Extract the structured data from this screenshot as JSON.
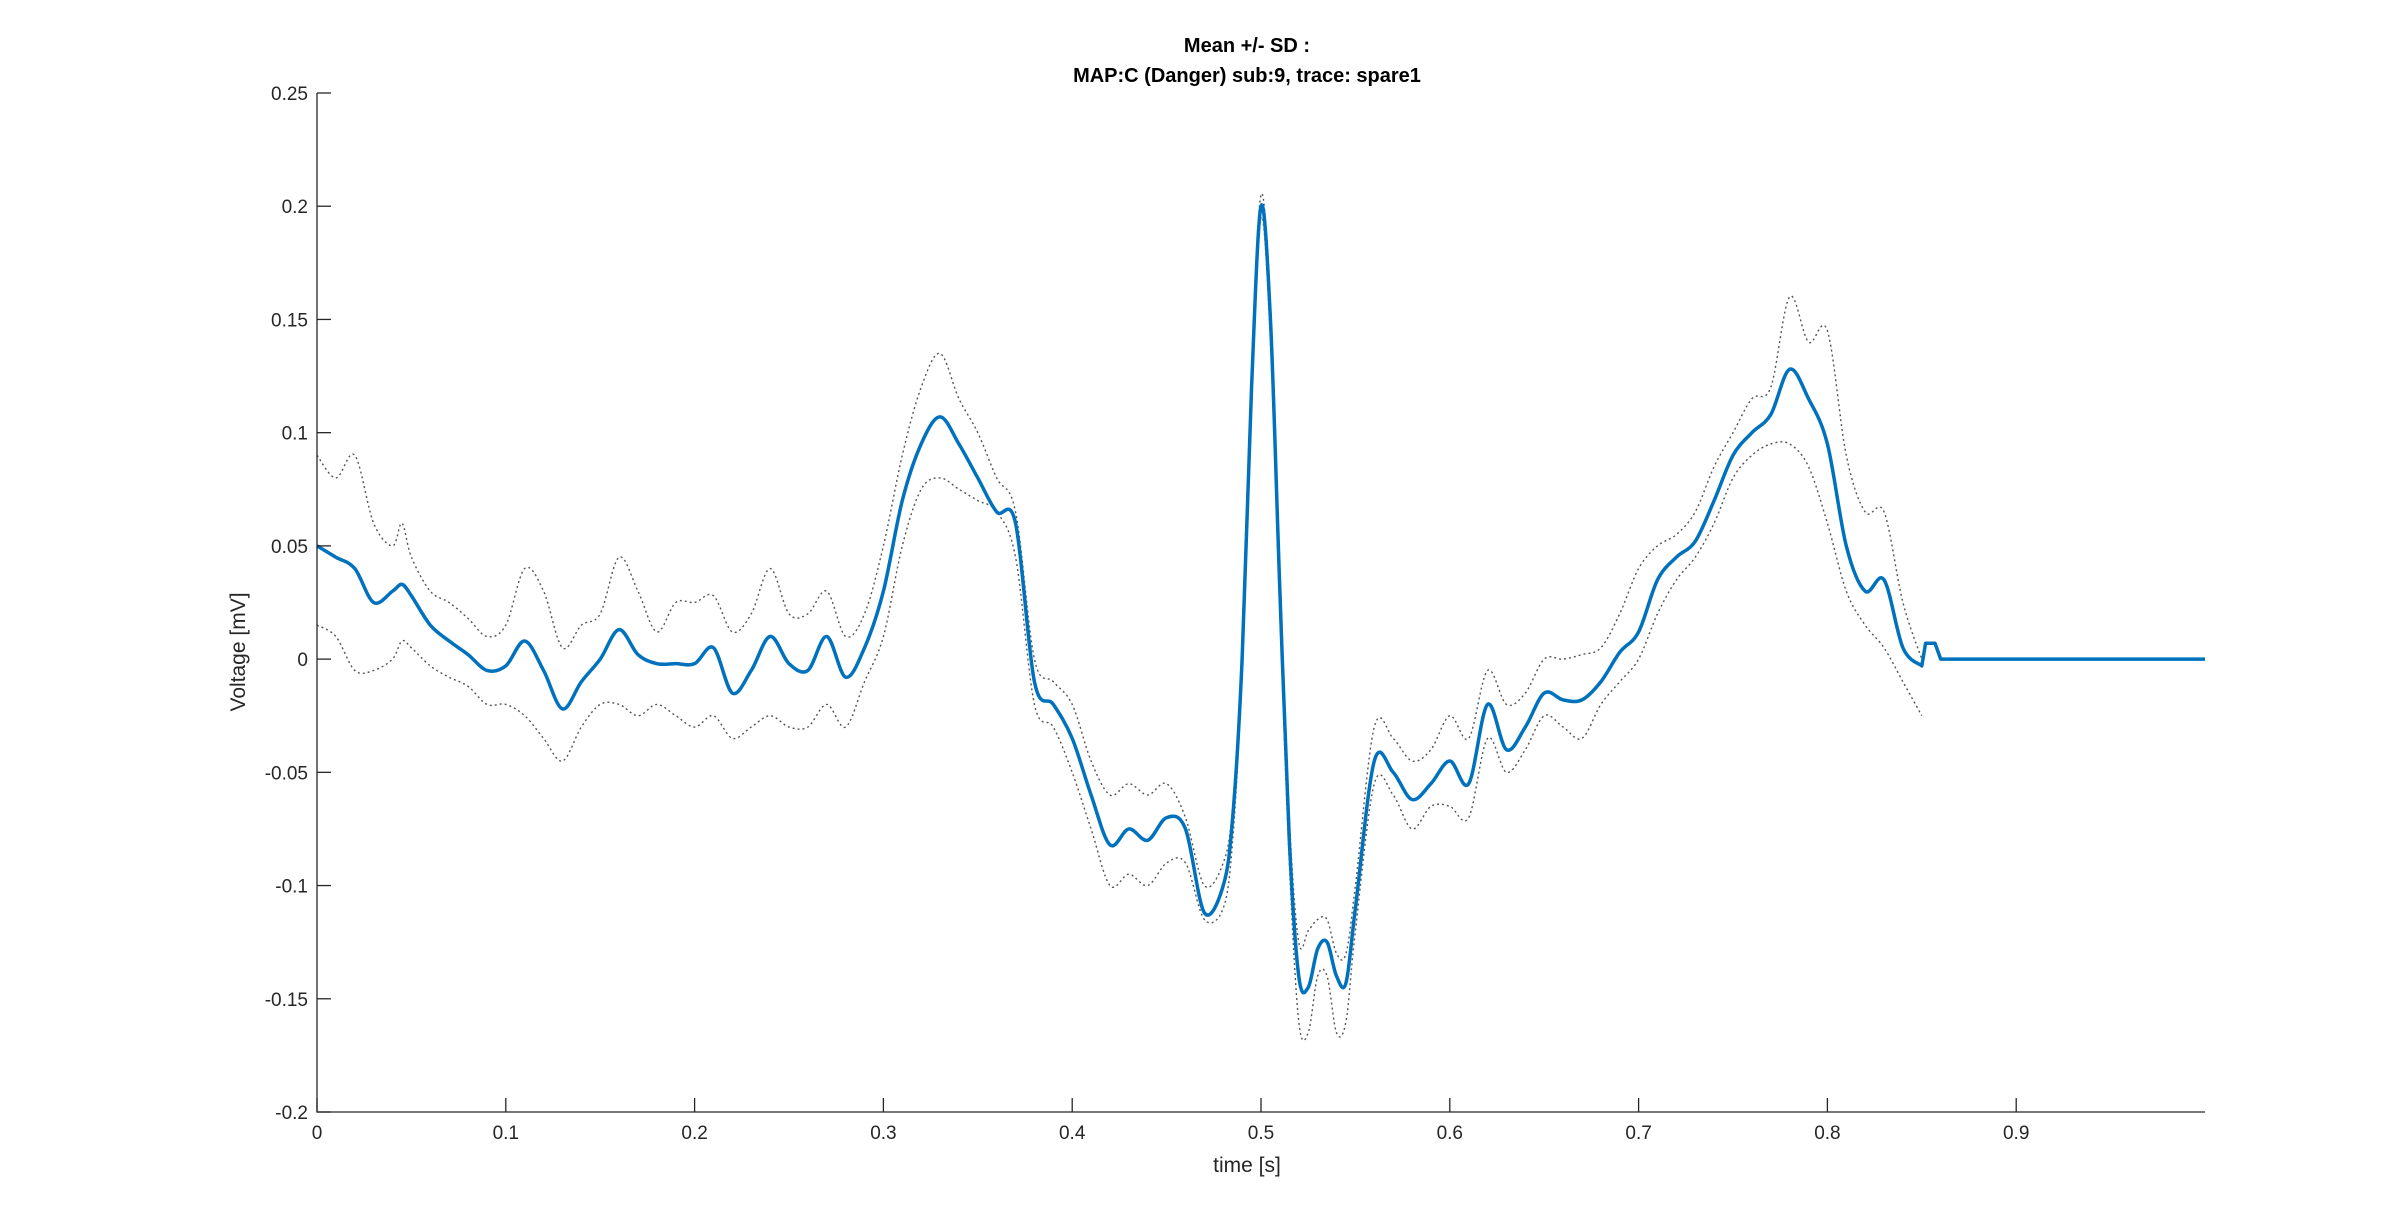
{
  "chart_data": {
    "type": "line",
    "title_lines": [
      "Mean +/- SD :",
      "MAP:C (Danger) sub:9, trace: spare1"
    ],
    "xlabel": "time [s]",
    "ylabel": "Voltage [mV]",
    "xlim": [
      0,
      1
    ],
    "ylim": [
      -0.2,
      0.25
    ],
    "x_ticks": [
      0,
      0.1,
      0.2,
      0.3,
      0.4,
      0.5,
      0.6,
      0.7,
      0.8,
      0.9
    ],
    "x_tick_labels": [
      "0",
      "0.1",
      "0.2",
      "0.3",
      "0.4",
      "0.5",
      "0.6",
      "0.7",
      "0.8",
      "0.9"
    ],
    "y_ticks": [
      -0.2,
      -0.15,
      -0.1,
      -0.05,
      0,
      0.05,
      0.1,
      0.15,
      0.2,
      0.25
    ],
    "y_tick_labels": [
      "-0.2",
      "-0.15",
      "-0.1",
      "-0.05",
      "0",
      "0.05",
      "0.1",
      "0.15",
      "0.2",
      "0.25"
    ],
    "grid": false,
    "colors": {
      "mean": "#0072BD",
      "sd": "#555555",
      "axis": "#262626"
    },
    "series": [
      {
        "x": [
          0,
          0.01,
          0.02,
          0.03,
          0.04,
          0.045,
          0.05,
          0.06,
          0.07,
          0.08,
          0.09,
          0.1,
          0.11,
          0.12,
          0.13,
          0.14,
          0.15,
          0.16,
          0.17,
          0.18,
          0.19,
          0.2,
          0.21,
          0.22,
          0.23,
          0.24,
          0.25,
          0.26,
          0.27,
          0.28,
          0.29,
          0.3,
          0.31,
          0.32,
          0.33,
          0.34,
          0.35,
          0.36,
          0.37,
          0.38,
          0.39,
          0.4,
          0.41,
          0.42,
          0.43,
          0.44,
          0.45,
          0.46,
          0.47,
          0.48,
          0.485,
          0.49,
          0.495,
          0.5,
          0.505,
          0.51,
          0.515,
          0.52,
          0.525,
          0.53,
          0.535,
          0.54,
          0.545,
          0.55,
          0.56,
          0.57,
          0.58,
          0.59,
          0.6,
          0.61,
          0.62,
          0.63,
          0.64,
          0.65,
          0.66,
          0.67,
          0.68,
          0.69,
          0.7,
          0.71,
          0.72,
          0.73,
          0.74,
          0.75,
          0.76,
          0.77,
          0.78,
          0.79,
          0.8,
          0.81,
          0.82,
          0.83,
          0.84,
          0.85,
          0.852,
          0.857,
          0.86,
          1.0
        ],
        "y": [
          0.05,
          0.045,
          0.04,
          0.025,
          0.03,
          0.033,
          0.028,
          0.015,
          0.008,
          0.002,
          -0.005,
          -0.003,
          0.008,
          -0.005,
          -0.022,
          -0.01,
          0.0,
          0.013,
          0.002,
          -0.002,
          -0.002,
          -0.002,
          0.005,
          -0.015,
          -0.005,
          0.01,
          -0.002,
          -0.005,
          0.01,
          -0.008,
          0.005,
          0.03,
          0.07,
          0.095,
          0.107,
          0.095,
          0.08,
          0.065,
          0.06,
          -0.01,
          -0.02,
          -0.035,
          -0.06,
          -0.082,
          -0.075,
          -0.08,
          -0.07,
          -0.075,
          -0.112,
          -0.1,
          -0.07,
          0.0,
          0.12,
          0.2,
          0.15,
          0.03,
          -0.08,
          -0.14,
          -0.145,
          -0.128,
          -0.125,
          -0.14,
          -0.143,
          -0.11,
          -0.045,
          -0.05,
          -0.062,
          -0.055,
          -0.045,
          -0.055,
          -0.02,
          -0.04,
          -0.03,
          -0.015,
          -0.018,
          -0.018,
          -0.01,
          0.003,
          0.012,
          0.035,
          0.045,
          0.052,
          0.07,
          0.09,
          0.1,
          0.108,
          0.128,
          0.115,
          0.095,
          0.05,
          0.03,
          0.035,
          0.005,
          -0.003,
          0.007,
          0.007,
          0.0,
          0.0
        ]
      },
      {
        "x": [
          0,
          0.01,
          0.02,
          0.03,
          0.04,
          0.045,
          0.05,
          0.06,
          0.07,
          0.08,
          0.09,
          0.1,
          0.11,
          0.12,
          0.13,
          0.14,
          0.15,
          0.16,
          0.17,
          0.18,
          0.19,
          0.2,
          0.21,
          0.22,
          0.23,
          0.24,
          0.25,
          0.26,
          0.27,
          0.28,
          0.29,
          0.3,
          0.31,
          0.32,
          0.33,
          0.34,
          0.35,
          0.36,
          0.37,
          0.38,
          0.39,
          0.4,
          0.41,
          0.42,
          0.43,
          0.44,
          0.45,
          0.46,
          0.47,
          0.48,
          0.485,
          0.49,
          0.495,
          0.5,
          0.505,
          0.51,
          0.515,
          0.52,
          0.525,
          0.53,
          0.535,
          0.54,
          0.545,
          0.55,
          0.56,
          0.57,
          0.58,
          0.59,
          0.6,
          0.61,
          0.62,
          0.63,
          0.64,
          0.65,
          0.66,
          0.67,
          0.68,
          0.69,
          0.7,
          0.71,
          0.72,
          0.73,
          0.74,
          0.75,
          0.76,
          0.77,
          0.78,
          0.79,
          0.8,
          0.81,
          0.82,
          0.83,
          0.84,
          0.85
        ],
        "y": [
          0.09,
          0.08,
          0.09,
          0.06,
          0.05,
          0.06,
          0.045,
          0.03,
          0.025,
          0.018,
          0.01,
          0.015,
          0.04,
          0.03,
          0.005,
          0.015,
          0.02,
          0.045,
          0.03,
          0.012,
          0.025,
          0.025,
          0.028,
          0.012,
          0.02,
          0.04,
          0.02,
          0.02,
          0.03,
          0.01,
          0.02,
          0.05,
          0.09,
          0.12,
          0.135,
          0.115,
          0.1,
          0.08,
          0.065,
          0.0,
          -0.01,
          -0.02,
          -0.045,
          -0.06,
          -0.055,
          -0.06,
          -0.055,
          -0.07,
          -0.1,
          -0.09,
          -0.065,
          0.005,
          0.125,
          0.205,
          0.155,
          0.04,
          -0.07,
          -0.125,
          -0.12,
          -0.115,
          -0.115,
          -0.13,
          -0.13,
          -0.1,
          -0.03,
          -0.035,
          -0.045,
          -0.04,
          -0.025,
          -0.035,
          -0.005,
          -0.02,
          -0.015,
          0.0,
          0.0,
          0.002,
          0.005,
          0.02,
          0.04,
          0.05,
          0.055,
          0.065,
          0.085,
          0.1,
          0.115,
          0.12,
          0.16,
          0.14,
          0.145,
          0.09,
          0.065,
          0.065,
          0.025,
          0.0
        ]
      },
      {
        "x": [
          0,
          0.01,
          0.02,
          0.03,
          0.04,
          0.045,
          0.05,
          0.06,
          0.07,
          0.08,
          0.09,
          0.1,
          0.11,
          0.12,
          0.13,
          0.14,
          0.15,
          0.16,
          0.17,
          0.18,
          0.19,
          0.2,
          0.21,
          0.22,
          0.23,
          0.24,
          0.25,
          0.26,
          0.27,
          0.28,
          0.29,
          0.3,
          0.31,
          0.32,
          0.33,
          0.34,
          0.35,
          0.36,
          0.37,
          0.38,
          0.39,
          0.4,
          0.41,
          0.42,
          0.43,
          0.44,
          0.45,
          0.46,
          0.47,
          0.48,
          0.485,
          0.49,
          0.495,
          0.5,
          0.505,
          0.51,
          0.515,
          0.52,
          0.525,
          0.53,
          0.535,
          0.54,
          0.545,
          0.55,
          0.56,
          0.57,
          0.58,
          0.59,
          0.6,
          0.61,
          0.62,
          0.63,
          0.64,
          0.65,
          0.66,
          0.67,
          0.68,
          0.69,
          0.7,
          0.71,
          0.72,
          0.73,
          0.74,
          0.75,
          0.76,
          0.77,
          0.78,
          0.79,
          0.8,
          0.81,
          0.82,
          0.83,
          0.84,
          0.85
        ],
        "y": [
          0.015,
          0.01,
          -0.005,
          -0.005,
          0.0,
          0.008,
          0.005,
          -0.003,
          -0.008,
          -0.012,
          -0.02,
          -0.02,
          -0.025,
          -0.035,
          -0.045,
          -0.03,
          -0.02,
          -0.02,
          -0.025,
          -0.02,
          -0.025,
          -0.03,
          -0.025,
          -0.035,
          -0.03,
          -0.025,
          -0.03,
          -0.03,
          -0.02,
          -0.03,
          -0.01,
          0.01,
          0.05,
          0.075,
          0.08,
          0.075,
          0.07,
          0.065,
          0.045,
          -0.02,
          -0.03,
          -0.05,
          -0.075,
          -0.1,
          -0.095,
          -0.1,
          -0.09,
          -0.09,
          -0.115,
          -0.11,
          -0.08,
          -0.005,
          0.115,
          0.195,
          0.14,
          0.02,
          -0.09,
          -0.16,
          -0.165,
          -0.14,
          -0.14,
          -0.165,
          -0.16,
          -0.12,
          -0.055,
          -0.06,
          -0.075,
          -0.065,
          -0.065,
          -0.07,
          -0.035,
          -0.05,
          -0.04,
          -0.025,
          -0.03,
          -0.035,
          -0.02,
          -0.01,
          0.0,
          0.02,
          0.035,
          0.045,
          0.06,
          0.08,
          0.09,
          0.095,
          0.095,
          0.085,
          0.06,
          0.03,
          0.015,
          0.005,
          -0.01,
          -0.025
        ]
      }
    ]
  }
}
